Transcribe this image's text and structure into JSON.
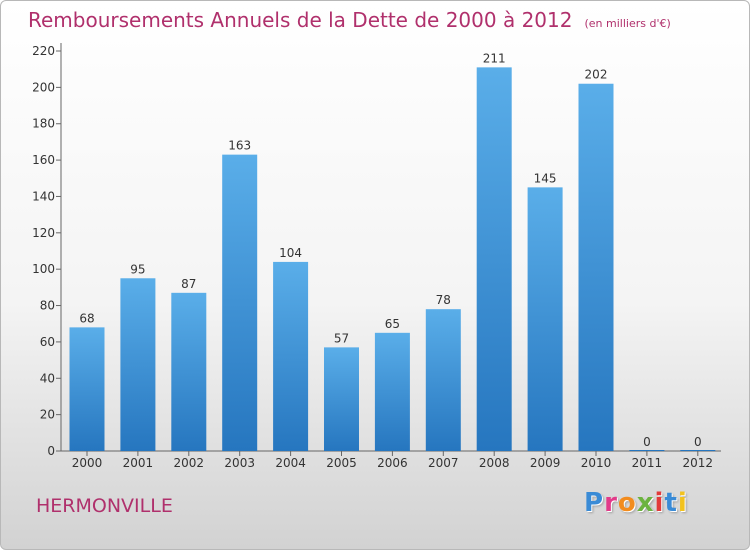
{
  "title": "Remboursements Annuels de la Dette de 2000 à 2012",
  "subtitle": "(en milliers d'€)",
  "town": "HERMONVILLE",
  "logo": {
    "letters": [
      "P",
      "r",
      "o",
      "x",
      "i",
      "t",
      "i"
    ],
    "colors": [
      "#3a8bd6",
      "#e23b8a",
      "#f28c1e",
      "#6cb33f",
      "#e23b3b",
      "#3a8bd6",
      "#f2c21e"
    ]
  },
  "colors": {
    "bar_light": "#5aaee9",
    "bar_dark": "#2676bf",
    "text_accent": "#b0306c"
  },
  "chart_data": {
    "type": "bar",
    "categories": [
      "2000",
      "2001",
      "2002",
      "2003",
      "2004",
      "2005",
      "2006",
      "2007",
      "2008",
      "2009",
      "2010",
      "2011",
      "2012"
    ],
    "values": [
      68,
      95,
      87,
      163,
      104,
      57,
      65,
      78,
      211,
      145,
      202,
      0,
      0
    ],
    "title": "Remboursements Annuels de la Dette de 2000 à 2012",
    "subtitle": "(en milliers d'€)",
    "ylim": [
      0,
      220
    ],
    "yticks": [
      0,
      20,
      40,
      60,
      80,
      100,
      120,
      140,
      160,
      180,
      200,
      220
    ],
    "grid": false,
    "legend": "none"
  }
}
